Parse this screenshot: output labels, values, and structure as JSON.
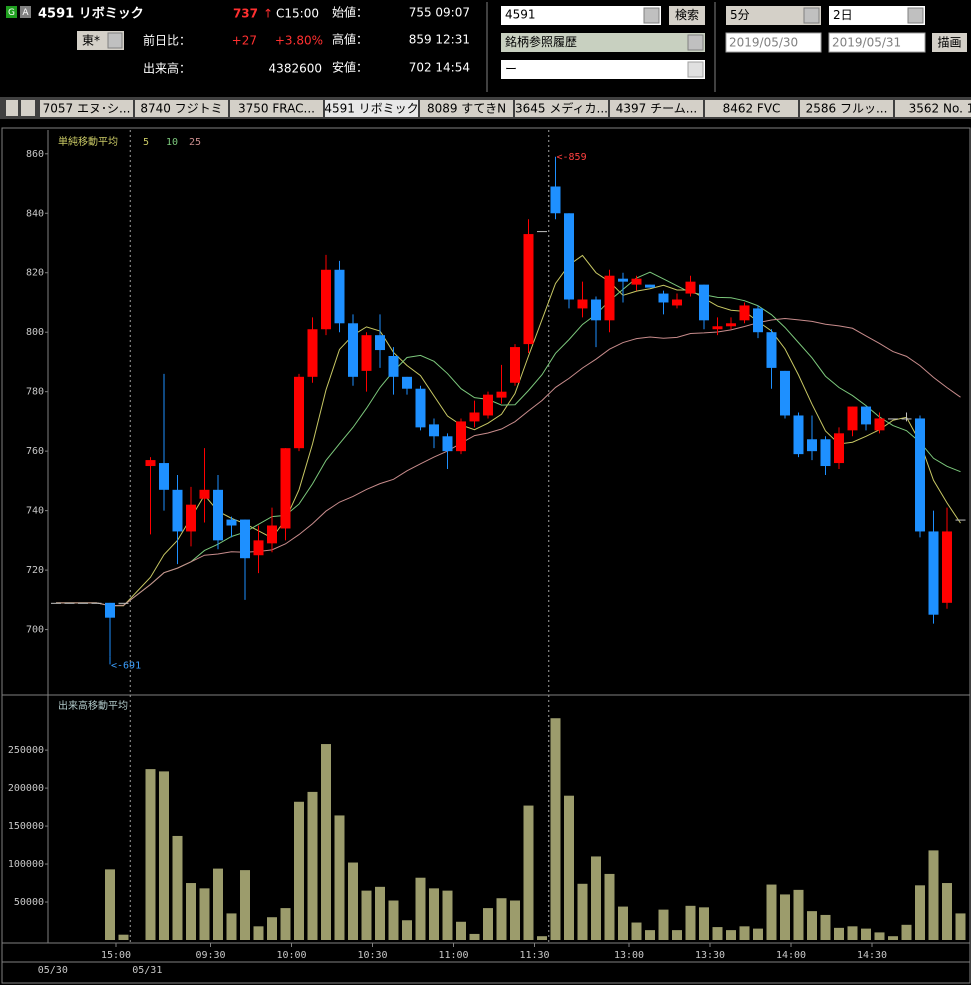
{
  "header": {
    "badge_g": "G",
    "badge_a": "A",
    "symbol": "4591 リボミック",
    "price": "737",
    "arrow": "↑",
    "time": "C15:00",
    "market": "東*",
    "change_label": "前日比：",
    "change": "+27",
    "change_pct": "+3.80%",
    "volume_label": "出来高：",
    "volume": "4382600",
    "open_label": "始値：",
    "open": "755 09:07",
    "high_label": "高値：",
    "high": "859 12:31",
    "low_label": "安値：",
    "low": "702 14:54"
  },
  "controls": {
    "code": "4591",
    "search": "検索",
    "history": "銘柄参照履歴",
    "blank": "ー",
    "interval": "5分",
    "span": "2日",
    "from": "2019/05/30",
    "to": "2019/05/31",
    "draw": "描画"
  },
  "tabs": [
    "7057 エヌ･シ...",
    "8740 フジトミ",
    "3750 FRAC...",
    "4591 リボミック",
    "8089 すてきN",
    "3645 メディカ...",
    "4397 チーム...",
    "8462 FVC",
    "2586 フルッ...",
    "3562 No. 1"
  ],
  "chart_data": {
    "type": "candlestick",
    "ma_title": "単純移動平均",
    "ma_periods": [
      5,
      10,
      25
    ],
    "ma_colors": [
      "#c8c864",
      "#7cc87c",
      "#c88c8c"
    ],
    "up_color": "#ff0000",
    "down_color": "#1e90ff",
    "volume_title": "出来高移動平均",
    "volume_color": "#9c9c6c",
    "ylim": [
      678,
      868
    ],
    "yticks": [
      860,
      840,
      820,
      800,
      780,
      760,
      740,
      720,
      700
    ],
    "vlim": [
      0,
      316000
    ],
    "vticks": [
      250000,
      200000,
      150000,
      100000,
      50000
    ],
    "sessions": [
      {
        "date": "05/30",
        "xticks": [
          {
            "value": 4,
            "label": "15:00"
          }
        ],
        "open": [
          709,
          709,
          709,
          709,
          709,
          709
        ],
        "high": [
          709,
          709,
          709,
          709,
          709,
          709
        ],
        "low": [
          709,
          709,
          709,
          709,
          691,
          709
        ],
        "close": [
          709,
          709,
          709,
          709,
          704,
          709
        ],
        "volume": [
          0,
          0,
          0,
          0,
          93000,
          7000
        ]
      },
      {
        "date": "05/31",
        "session_breaks": [
          30
        ],
        "xticks": [
          {
            "value": 4,
            "label": "09:30"
          },
          {
            "value": 10,
            "label": "10:00"
          },
          {
            "value": 16,
            "label": "10:30"
          },
          {
            "value": 22,
            "label": "11:00"
          },
          {
            "value": 28,
            "label": "11:30"
          },
          {
            "value": 35,
            "label": "13:00"
          },
          {
            "value": 41,
            "label": "13:30"
          },
          {
            "value": 47,
            "label": "14:00"
          },
          {
            "value": 53,
            "label": "14:30"
          }
        ],
        "open": [
          755,
          756,
          747,
          733,
          744,
          747,
          737,
          737,
          725,
          729,
          734,
          761,
          785,
          801,
          821,
          803,
          787,
          799,
          792,
          785,
          781,
          769,
          765,
          760,
          770,
          772,
          778,
          783,
          796,
          834,
          849,
          840,
          808,
          811,
          804,
          818,
          816,
          816,
          813,
          809,
          813,
          816,
          801,
          802,
          804,
          808,
          800,
          787,
          772,
          764,
          764,
          756,
          767,
          775,
          767,
          771,
          771,
          771,
          733,
          709,
          737
        ],
        "high": [
          758,
          786,
          752,
          748,
          761,
          752,
          738,
          737,
          735,
          741,
          761,
          786,
          805,
          826,
          824,
          806,
          800,
          806,
          795,
          785,
          782,
          771,
          766,
          771,
          777,
          780,
          789,
          796,
          838,
          834,
          859,
          840,
          817,
          812,
          821,
          820,
          819,
          816,
          814,
          813,
          819,
          816,
          805,
          805,
          810,
          809,
          801,
          787,
          773,
          772,
          765,
          768,
          775,
          775,
          773,
          771,
          773,
          772,
          740,
          741,
          737
        ],
        "low": [
          732,
          740,
          722,
          728,
          736,
          727,
          731,
          710,
          719,
          726,
          730,
          760,
          783,
          799,
          800,
          782,
          780,
          788,
          779,
          779,
          767,
          761,
          754,
          759,
          768,
          771,
          776,
          782,
          793,
          834,
          838,
          808,
          805,
          795,
          800,
          810,
          814,
          815,
          806,
          808,
          812,
          801,
          799,
          801,
          803,
          798,
          781,
          771,
          758,
          757,
          752,
          754,
          765,
          767,
          766,
          771,
          770,
          731,
          702,
          707,
          737
        ],
        "close": [
          757,
          747,
          733,
          742,
          747,
          730,
          735,
          724,
          730,
          735,
          761,
          785,
          801,
          821,
          803,
          785,
          799,
          794,
          785,
          781,
          768,
          765,
          760,
          770,
          773,
          779,
          780,
          795,
          833,
          834,
          840,
          811,
          811,
          804,
          819,
          817,
          818,
          815,
          810,
          811,
          817,
          804,
          802,
          803,
          809,
          800,
          788,
          772,
          759,
          760,
          755,
          766,
          775,
          769,
          771,
          771,
          771,
          733,
          705,
          733,
          737
        ],
        "volume": [
          225000,
          222000,
          137000,
          75000,
          68000,
          94000,
          35000,
          92000,
          18000,
          30000,
          42000,
          182000,
          195000,
          258000,
          164000,
          102000,
          65000,
          70000,
          52000,
          26000,
          82000,
          68000,
          65000,
          24000,
          8000,
          42000,
          55000,
          52000,
          177000,
          5000,
          292000,
          190000,
          74000,
          110000,
          87000,
          44000,
          23000,
          13000,
          40000,
          13000,
          45000,
          43000,
          17000,
          13000,
          18000,
          15000,
          73000,
          60000,
          66000,
          38000,
          33000,
          16000,
          18000,
          15000,
          10000,
          5000,
          20000,
          72000,
          118000,
          75000,
          35000
        ]
      }
    ],
    "annotations": [
      {
        "label": "<-859",
        "session": 1,
        "index": 30,
        "value": 859
      },
      {
        "label": "<-691",
        "session": 0,
        "index": 4,
        "value": 691
      }
    ]
  }
}
